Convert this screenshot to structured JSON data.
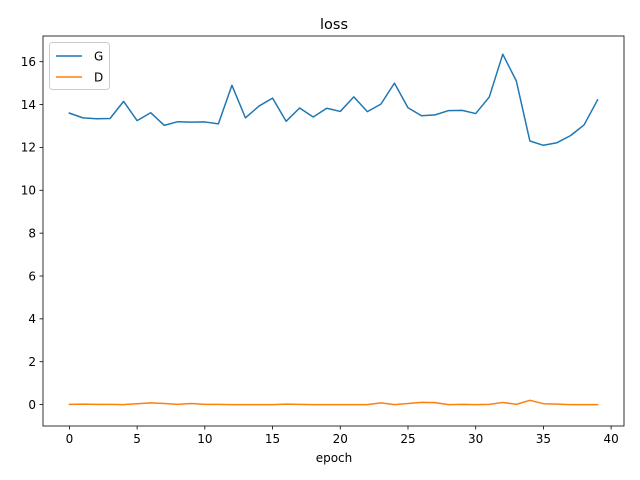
{
  "chart_data": {
    "type": "line",
    "title": "loss",
    "xlabel": "epoch",
    "ylabel": "",
    "xlim": [
      -1.95,
      40.95
    ],
    "ylim": [
      -1.0,
      17.2
    ],
    "xticks": [
      0,
      5,
      10,
      15,
      20,
      25,
      30,
      35,
      40
    ],
    "yticks": [
      0,
      2,
      4,
      6,
      8,
      10,
      12,
      14,
      16
    ],
    "grid": false,
    "legend_position": "top-left",
    "x": [
      0,
      1,
      2,
      3,
      4,
      5,
      6,
      7,
      8,
      9,
      10,
      11,
      12,
      13,
      14,
      15,
      16,
      17,
      18,
      19,
      20,
      21,
      22,
      23,
      24,
      25,
      26,
      27,
      28,
      29,
      30,
      31,
      32,
      33,
      34,
      35,
      36,
      37,
      38,
      39
    ],
    "series": [
      {
        "name": "G",
        "color": "#1f77b4",
        "values": [
          13.6,
          13.38,
          13.34,
          13.35,
          14.15,
          13.25,
          13.62,
          13.03,
          13.2,
          13.18,
          13.19,
          13.1,
          14.9,
          13.38,
          13.93,
          14.3,
          13.22,
          13.84,
          13.42,
          13.83,
          13.68,
          14.36,
          13.67,
          14.02,
          15.0,
          13.85,
          13.48,
          13.52,
          13.72,
          13.73,
          13.58,
          14.35,
          16.35,
          15.1,
          12.3,
          12.1,
          12.22,
          12.55,
          13.05,
          14.22
        ]
      },
      {
        "name": "D",
        "color": "#ff7f0e",
        "values": [
          0.01,
          0.02,
          0.01,
          0.01,
          0.0,
          0.04,
          0.08,
          0.05,
          0.01,
          0.05,
          0.01,
          0.01,
          0.0,
          0.0,
          0.0,
          0.0,
          0.02,
          0.01,
          0.0,
          0.0,
          0.0,
          0.0,
          0.0,
          0.08,
          0.0,
          0.05,
          0.1,
          0.09,
          0.0,
          0.01,
          0.0,
          0.01,
          0.1,
          0.01,
          0.2,
          0.04,
          0.02,
          0.0,
          0.0,
          0.0
        ]
      }
    ]
  }
}
